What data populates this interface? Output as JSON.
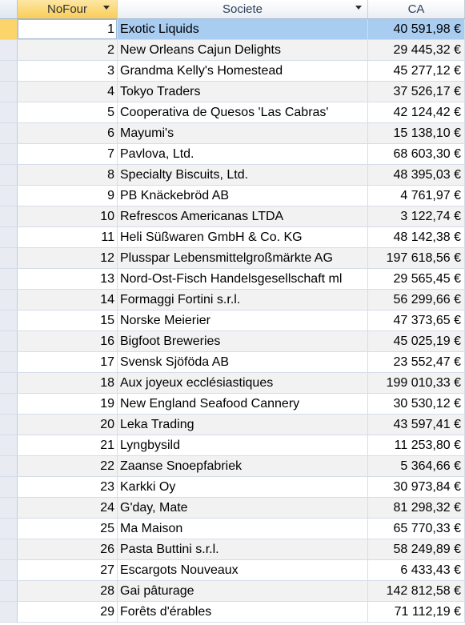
{
  "columns": {
    "nofour": "NoFour",
    "societe": "Societe",
    "ca": "CA"
  },
  "rows": [
    {
      "nofour": "1",
      "societe": "Exotic Liquids",
      "ca": "40 591,98 €"
    },
    {
      "nofour": "2",
      "societe": "New Orleans Cajun Delights",
      "ca": "29 445,32 €"
    },
    {
      "nofour": "3",
      "societe": "Grandma Kelly's Homestead",
      "ca": "45 277,12 €"
    },
    {
      "nofour": "4",
      "societe": "Tokyo Traders",
      "ca": "37 526,17 €"
    },
    {
      "nofour": "5",
      "societe": "Cooperativa de Quesos 'Las Cabras'",
      "ca": "42 124,42 €"
    },
    {
      "nofour": "6",
      "societe": "Mayumi's",
      "ca": "15 138,10 €"
    },
    {
      "nofour": "7",
      "societe": "Pavlova, Ltd.",
      "ca": "68 603,30 €"
    },
    {
      "nofour": "8",
      "societe": "Specialty Biscuits, Ltd.",
      "ca": "48 395,03 €"
    },
    {
      "nofour": "9",
      "societe": "PB Knäckebröd AB",
      "ca": "4 761,97 €"
    },
    {
      "nofour": "10",
      "societe": "Refrescos Americanas LTDA",
      "ca": "3 122,74 €"
    },
    {
      "nofour": "11",
      "societe": "Heli Süßwaren GmbH & Co. KG",
      "ca": "48 142,38 €"
    },
    {
      "nofour": "12",
      "societe": "Plusspar Lebensmittelgroßmärkte AG",
      "ca": "197 618,56 €"
    },
    {
      "nofour": "13",
      "societe": "Nord-Ost-Fisch Handelsgesellschaft ml",
      "ca": "29 565,45 €"
    },
    {
      "nofour": "14",
      "societe": "Formaggi Fortini s.r.l.",
      "ca": "56 299,66 €"
    },
    {
      "nofour": "15",
      "societe": "Norske Meierier",
      "ca": "47 373,65 €"
    },
    {
      "nofour": "16",
      "societe": "Bigfoot Breweries",
      "ca": "45 025,19 €"
    },
    {
      "nofour": "17",
      "societe": "Svensk Sjöföda AB",
      "ca": "23 552,47 €"
    },
    {
      "nofour": "18",
      "societe": "Aux joyeux ecclésiastiques",
      "ca": "199 010,33 €"
    },
    {
      "nofour": "19",
      "societe": "New England Seafood Cannery",
      "ca": "30 530,12 €"
    },
    {
      "nofour": "20",
      "societe": "Leka Trading",
      "ca": "43 597,41 €"
    },
    {
      "nofour": "21",
      "societe": "Lyngbysild",
      "ca": "11 253,80 €"
    },
    {
      "nofour": "22",
      "societe": "Zaanse Snoepfabriek",
      "ca": "5 364,66 €"
    },
    {
      "nofour": "23",
      "societe": "Karkki Oy",
      "ca": "30 973,84 €"
    },
    {
      "nofour": "24",
      "societe": "G'day, Mate",
      "ca": "81 298,32 €"
    },
    {
      "nofour": "25",
      "societe": "Ma Maison",
      "ca": "65 770,33 €"
    },
    {
      "nofour": "26",
      "societe": "Pasta Buttini s.r.l.",
      "ca": "58 249,89 €"
    },
    {
      "nofour": "27",
      "societe": "Escargots Nouveaux",
      "ca": "6 433,43 €"
    },
    {
      "nofour": "28",
      "societe": "Gai pâturage",
      "ca": "142 812,58 €"
    },
    {
      "nofour": "29",
      "societe": "Forêts d'érables",
      "ca": "71 112,19 €"
    }
  ],
  "selected_row": 0,
  "colors": {
    "header_selected": "#f9cd56",
    "row_highlight": "#a9ccf1",
    "record_selector_current": "#fcd56a"
  }
}
